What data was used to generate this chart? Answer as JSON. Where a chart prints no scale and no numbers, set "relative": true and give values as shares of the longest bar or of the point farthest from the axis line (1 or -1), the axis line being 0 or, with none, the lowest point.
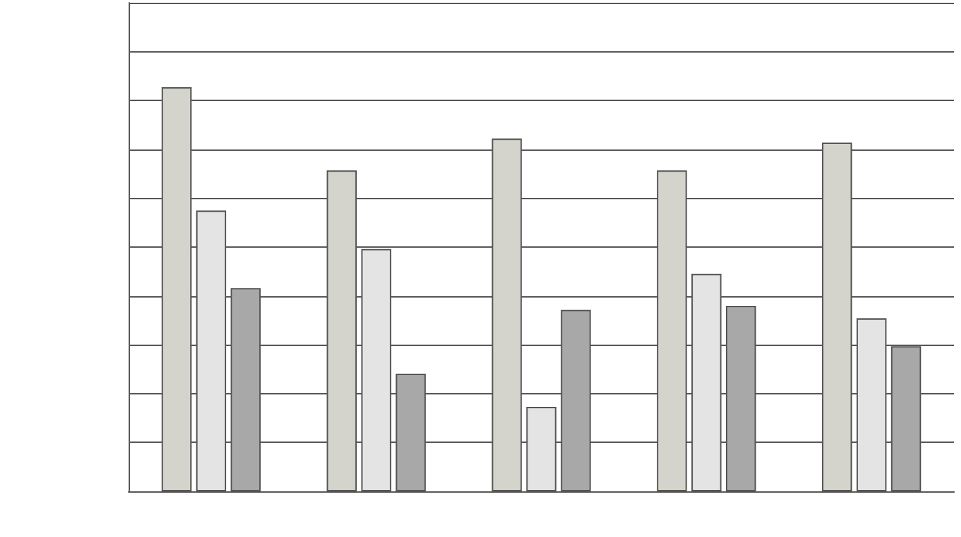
{
  "chart_data": {
    "type": "bar",
    "relative": true,
    "grid": "y",
    "categories": [
      null,
      null,
      null,
      null,
      null
    ],
    "series": [
      {
        "color": "#d4d4cc",
        "values": [
          1,
          0.794,
          0.873,
          0.794,
          0.863
        ]
      },
      {
        "color": "#e4e4e4",
        "values": [
          0.695,
          0.6,
          0.209,
          0.538,
          0.428
        ]
      },
      {
        "color": "#a8a8a8",
        "values": [
          0.503,
          0.291,
          0.449,
          0.459,
          0.359
        ]
      }
    ]
  }
}
